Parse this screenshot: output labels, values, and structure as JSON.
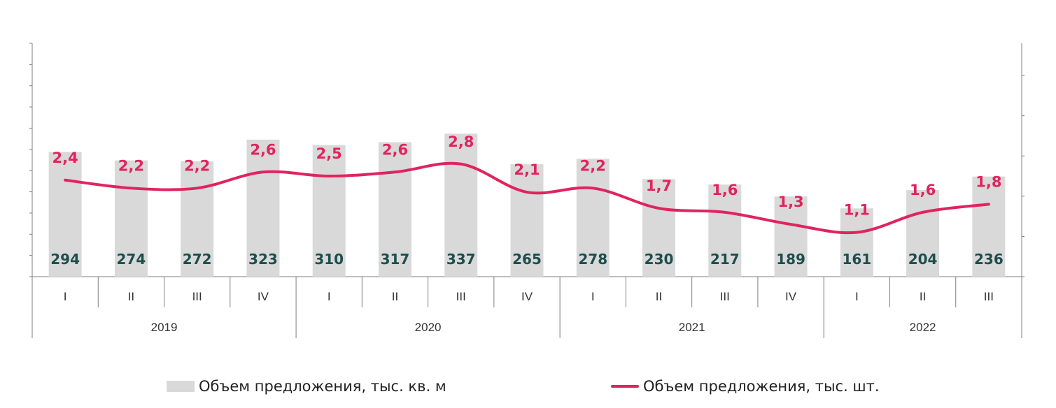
{
  "chart_data": {
    "type": "bar",
    "categories": [
      "I",
      "II",
      "III",
      "IV",
      "I",
      "II",
      "III",
      "IV",
      "I",
      "II",
      "III",
      "IV",
      "I",
      "II",
      "III"
    ],
    "years": [
      {
        "label": "2019",
        "quarters": 4
      },
      {
        "label": "2020",
        "quarters": 4
      },
      {
        "label": "2021",
        "quarters": 4
      },
      {
        "label": "2022",
        "quarters": 3
      }
    ],
    "series": [
      {
        "name": "Объем предложения, тыс. кв. м",
        "type": "bar",
        "axis": "left",
        "color": "#d9d9d9",
        "values": [
          294,
          274,
          272,
          323,
          310,
          317,
          337,
          265,
          278,
          230,
          217,
          189,
          161,
          204,
          236
        ],
        "labels": [
          "294",
          "274",
          "272",
          "323",
          "310",
          "317",
          "337",
          "265",
          "278",
          "230",
          "217",
          "189",
          "161",
          "204",
          "236"
        ]
      },
      {
        "name": "Объем предложения, тыс. шт.",
        "type": "line",
        "axis": "right",
        "color": "#e0245e",
        "values": [
          2.4,
          2.2,
          2.2,
          2.6,
          2.5,
          2.6,
          2.8,
          2.1,
          2.2,
          1.7,
          1.6,
          1.3,
          1.1,
          1.6,
          1.8
        ],
        "labels": [
          "2,4",
          "2,2",
          "2,2",
          "2,6",
          "2,5",
          "2,6",
          "2,8",
          "2,1",
          "2,2",
          "1,7",
          "1,6",
          "1,3",
          "1,1",
          "1,6",
          "1,8"
        ]
      }
    ],
    "ylim_left": [
      0,
      550
    ],
    "ylim_right": [
      0,
      5.8
    ],
    "grid": false,
    "legend": "bottom",
    "label_color": "#1e4e4e"
  }
}
